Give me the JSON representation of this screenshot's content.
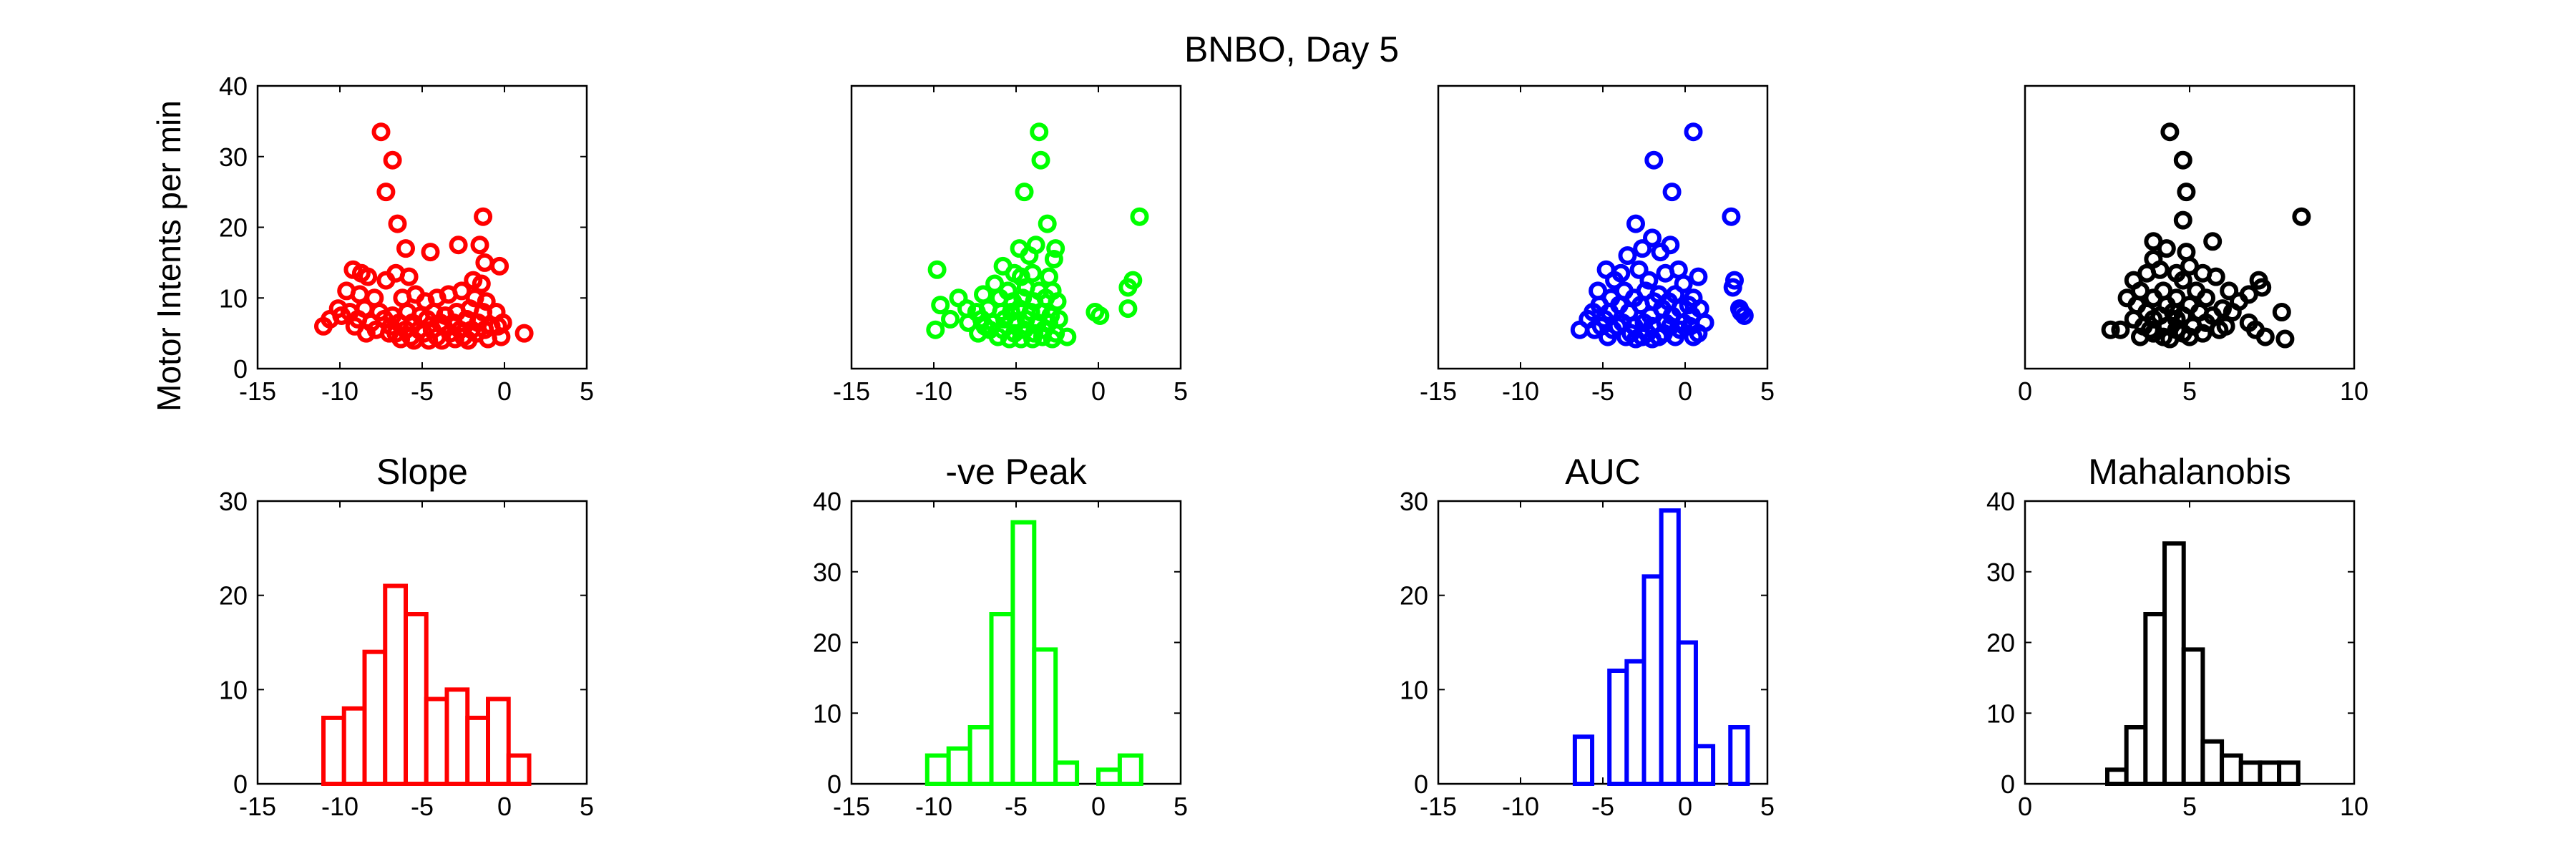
{
  "figure": {
    "suptitle": "BNBO, Day 5",
    "ylabel": "Motor Intents per min"
  },
  "colors": {
    "slope": "#ff0000",
    "peak": "#00ff00",
    "auc": "#0000ff",
    "mahal": "#000000"
  },
  "chart_data": [
    {
      "id": "slope-scatter",
      "type": "scatter",
      "row": 0,
      "col": 0,
      "color": "slope",
      "title": "",
      "ylabel": "Motor Intents per min",
      "xlim": [
        -15,
        5
      ],
      "xticks": [
        -15,
        -10,
        -5,
        0,
        5
      ],
      "ylim": [
        0,
        40
      ],
      "yticks": [
        0,
        10,
        20,
        30,
        40
      ],
      "show_yticks": true,
      "points": [
        [
          -7.5,
          33.5
        ],
        [
          -6.8,
          29.5
        ],
        [
          -7.2,
          25
        ],
        [
          -6.5,
          20.5
        ],
        [
          -1.3,
          21.5
        ],
        [
          -6,
          17
        ],
        [
          -1.5,
          17.5
        ],
        [
          -4.5,
          16.5
        ],
        [
          -2.8,
          17.5
        ],
        [
          -1.2,
          15
        ],
        [
          -0.3,
          14.5
        ],
        [
          -9.2,
          14
        ],
        [
          -8.7,
          13.5
        ],
        [
          -8.3,
          13
        ],
        [
          -7.2,
          12.5
        ],
        [
          -6.6,
          13.5
        ],
        [
          -5.8,
          13
        ],
        [
          -1.9,
          12.5
        ],
        [
          -1.4,
          12
        ],
        [
          -9.6,
          11
        ],
        [
          -8.8,
          10.5
        ],
        [
          -7.9,
          10
        ],
        [
          -6.2,
          10
        ],
        [
          -5.4,
          10.5
        ],
        [
          -4.8,
          9.5
        ],
        [
          -4.1,
          10
        ],
        [
          -3.4,
          10.5
        ],
        [
          -2.6,
          11
        ],
        [
          -1.8,
          10
        ],
        [
          -1.1,
          9.5
        ],
        [
          -10.1,
          8.5
        ],
        [
          -9.4,
          8
        ],
        [
          -8.5,
          8.5
        ],
        [
          -7.6,
          8
        ],
        [
          -6.8,
          7.5
        ],
        [
          -5.9,
          8
        ],
        [
          -5.1,
          7.5
        ],
        [
          -4.3,
          8
        ],
        [
          -3.6,
          7.5
        ],
        [
          -2.9,
          8
        ],
        [
          -2.1,
          8.5
        ],
        [
          -1.3,
          8
        ],
        [
          -0.5,
          8
        ],
        [
          -10.6,
          7
        ],
        [
          -9.9,
          7.5
        ],
        [
          -8.9,
          7
        ],
        [
          -8.1,
          6.5
        ],
        [
          -7.3,
          7
        ],
        [
          -6.4,
          6.5
        ],
        [
          -5.6,
          6.5
        ],
        [
          -4.7,
          7
        ],
        [
          -3.9,
          6.5
        ],
        [
          -3.1,
          6.5
        ],
        [
          -2.3,
          7
        ],
        [
          -1.6,
          6.5
        ],
        [
          -0.8,
          6
        ],
        [
          -0.1,
          6.5
        ],
        [
          -11,
          6
        ],
        [
          -9.1,
          6
        ],
        [
          -7.8,
          5.5
        ],
        [
          -6.9,
          6
        ],
        [
          -6,
          5.5
        ],
        [
          -5.2,
          5.5
        ],
        [
          -4.4,
          5.5
        ],
        [
          -3.7,
          6
        ],
        [
          -2.7,
          5.5
        ],
        [
          -2,
          5.5
        ],
        [
          -1.2,
          5.5
        ],
        [
          -0.4,
          6
        ],
        [
          -8.4,
          5
        ],
        [
          -6.6,
          5
        ],
        [
          -5.7,
          4.5
        ],
        [
          -4.9,
          5
        ],
        [
          -4.1,
          4.5
        ],
        [
          -3.3,
          5
        ],
        [
          -2.5,
          4.5
        ],
        [
          -1.7,
          5
        ],
        [
          -0.2,
          4.5
        ],
        [
          1.2,
          5
        ],
        [
          -5.5,
          4
        ],
        [
          -4.6,
          4
        ],
        [
          -3.8,
          4
        ],
        [
          -3,
          4.2
        ],
        [
          -2.2,
          4
        ],
        [
          -6.3,
          4.2
        ],
        [
          -7,
          5
        ],
        [
          -1,
          4.2
        ]
      ]
    },
    {
      "id": "peak-scatter",
      "type": "scatter",
      "row": 0,
      "col": 1,
      "color": "peak",
      "title": "",
      "ylabel": "",
      "xlim": [
        -15,
        5
      ],
      "xticks": [
        -15,
        -10,
        -5,
        0,
        5
      ],
      "ylim": [
        0,
        40
      ],
      "yticks": [],
      "show_yticks": false,
      "points": [
        [
          -3.6,
          33.5
        ],
        [
          -3.5,
          29.5
        ],
        [
          -4.5,
          25
        ],
        [
          -3.1,
          20.5
        ],
        [
          2.5,
          21.5
        ],
        [
          -2.6,
          17
        ],
        [
          -3.8,
          17.5
        ],
        [
          -4.8,
          17
        ],
        [
          -2.7,
          15.5
        ],
        [
          -4.2,
          16
        ],
        [
          -5.8,
          14.5
        ],
        [
          -9.8,
          14
        ],
        [
          -5.1,
          13.5
        ],
        [
          -4.7,
          13
        ],
        [
          -4,
          13.5
        ],
        [
          -3,
          13
        ],
        [
          2.1,
          12.5
        ],
        [
          1.8,
          11.5
        ],
        [
          -6.3,
          12
        ],
        [
          -5.5,
          11
        ],
        [
          -4.4,
          11.5
        ],
        [
          -3.6,
          11
        ],
        [
          -2.8,
          11
        ],
        [
          -8.5,
          10
        ],
        [
          -7,
          10.5
        ],
        [
          -6,
          10
        ],
        [
          -5.2,
          9.5
        ],
        [
          -4.6,
          10
        ],
        [
          -3.9,
          9.5
        ],
        [
          -3.2,
          10
        ],
        [
          -2.5,
          9.5
        ],
        [
          -9.6,
          9
        ],
        [
          -8,
          8.5
        ],
        [
          -7.4,
          8
        ],
        [
          -6.7,
          8.5
        ],
        [
          -5.9,
          8
        ],
        [
          -5.3,
          8
        ],
        [
          -4.8,
          8.5
        ],
        [
          -4.1,
          8
        ],
        [
          -3.5,
          8
        ],
        [
          -2.9,
          7.5
        ],
        [
          -0.2,
          8
        ],
        [
          0.1,
          7.5
        ],
        [
          1.8,
          8.5
        ],
        [
          -9,
          7
        ],
        [
          -7.9,
          6.5
        ],
        [
          -7.1,
          7
        ],
        [
          -6.4,
          6.5
        ],
        [
          -5.7,
          7
        ],
        [
          -5,
          6.5
        ],
        [
          -4.4,
          7
        ],
        [
          -3.7,
          6.5
        ],
        [
          -3,
          6.5
        ],
        [
          -2.4,
          7
        ],
        [
          -9.9,
          5.5
        ],
        [
          -6.6,
          5.5
        ],
        [
          -5.8,
          5.5
        ],
        [
          -5.1,
          5
        ],
        [
          -4.5,
          5.5
        ],
        [
          -3.9,
          5
        ],
        [
          -3.3,
          5.5
        ],
        [
          -2.6,
          5
        ],
        [
          -1.9,
          4.5
        ],
        [
          -6.1,
          4.5
        ],
        [
          -5.4,
          4.2
        ],
        [
          -4.7,
          4.2
        ],
        [
          -4,
          4.2
        ],
        [
          -3.4,
          4.5
        ],
        [
          -2.8,
          4.2
        ],
        [
          -7.3,
          5
        ],
        [
          -6.9,
          6
        ]
      ]
    },
    {
      "id": "auc-scatter",
      "type": "scatter",
      "row": 0,
      "col": 2,
      "color": "auc",
      "title": "",
      "ylabel": "",
      "xlim": [
        -15,
        5
      ],
      "xticks": [
        -15,
        -10,
        -5,
        0,
        5
      ],
      "ylim": [
        0,
        40
      ],
      "yticks": [],
      "show_yticks": false,
      "points": [
        [
          0.5,
          33.5
        ],
        [
          -1.9,
          29.5
        ],
        [
          -0.8,
          25
        ],
        [
          -3,
          20.5
        ],
        [
          2.8,
          21.5
        ],
        [
          -0.9,
          17.5
        ],
        [
          -2,
          18.5
        ],
        [
          -2.6,
          17
        ],
        [
          -3.5,
          16
        ],
        [
          -1.5,
          16.5
        ],
        [
          -4.8,
          14
        ],
        [
          -3.9,
          13.5
        ],
        [
          -2.8,
          14
        ],
        [
          -0.4,
          14
        ],
        [
          -1.2,
          13.5
        ],
        [
          0.8,
          13
        ],
        [
          -4.3,
          12.5
        ],
        [
          -2.2,
          12.5
        ],
        [
          -0.1,
          12
        ],
        [
          3,
          12.5
        ],
        [
          2.9,
          11.5
        ],
        [
          -5.3,
          11
        ],
        [
          -3.7,
          11
        ],
        [
          -2.4,
          11
        ],
        [
          -1.6,
          10.5
        ],
        [
          -0.6,
          10.5
        ],
        [
          0.5,
          10
        ],
        [
          -4.5,
          10
        ],
        [
          -3.1,
          10
        ],
        [
          -1.9,
          9.5
        ],
        [
          -1,
          9.5
        ],
        [
          0.2,
          9
        ],
        [
          -5.2,
          9
        ],
        [
          -4,
          9
        ],
        [
          -2.7,
          9
        ],
        [
          -1.4,
          8.5
        ],
        [
          -0.3,
          8.5
        ],
        [
          0.9,
          8.5
        ],
        [
          3.3,
          8.5
        ],
        [
          3.6,
          7.5
        ],
        [
          3.4,
          8
        ],
        [
          -5.6,
          8
        ],
        [
          -4.6,
          8
        ],
        [
          -3.4,
          8
        ],
        [
          -2.1,
          7.5
        ],
        [
          -0.8,
          7.5
        ],
        [
          0.4,
          7.5
        ],
        [
          -5.9,
          7
        ],
        [
          -4.9,
          7
        ],
        [
          -3.8,
          6.5
        ],
        [
          -2.5,
          6.5
        ],
        [
          -1.2,
          6.5
        ],
        [
          -0.1,
          6.5
        ],
        [
          1.2,
          6.5
        ],
        [
          -5.1,
          6
        ],
        [
          -4.1,
          6
        ],
        [
          -3.1,
          6
        ],
        [
          -2,
          6
        ],
        [
          -0.9,
          6
        ],
        [
          0.3,
          6
        ],
        [
          -6.4,
          5.5
        ],
        [
          -5.5,
          5.5
        ],
        [
          -4.4,
          5.5
        ],
        [
          -3.3,
          5
        ],
        [
          -2.3,
          5
        ],
        [
          -1.3,
          5
        ],
        [
          -0.3,
          5.5
        ],
        [
          0.8,
          5
        ],
        [
          -4.7,
          4.5
        ],
        [
          -3.6,
          4.5
        ],
        [
          -2.6,
          4.5
        ],
        [
          -1.6,
          4.5
        ],
        [
          -0.6,
          4.5
        ],
        [
          0.5,
          4.5
        ],
        [
          -3,
          4.2
        ],
        [
          -2,
          4.2
        ]
      ]
    },
    {
      "id": "mahal-scatter",
      "type": "scatter",
      "row": 0,
      "col": 3,
      "color": "mahal",
      "title": "",
      "ylabel": "",
      "xlim": [
        0,
        10
      ],
      "xticks": [
        0,
        5,
        10
      ],
      "ylim": [
        0,
        40
      ],
      "yticks": [],
      "show_yticks": false,
      "points": [
        [
          4.4,
          33.5
        ],
        [
          4.8,
          29.5
        ],
        [
          4.9,
          25
        ],
        [
          4.8,
          21
        ],
        [
          8.4,
          21.5
        ],
        [
          3.9,
          18
        ],
        [
          5.7,
          18
        ],
        [
          4.3,
          17
        ],
        [
          4.9,
          16.5
        ],
        [
          3.9,
          15.5
        ],
        [
          5,
          14.5
        ],
        [
          4.1,
          14
        ],
        [
          3.7,
          13.5
        ],
        [
          4.6,
          13.5
        ],
        [
          5.4,
          13.5
        ],
        [
          5.8,
          13
        ],
        [
          3.3,
          12.5
        ],
        [
          4.8,
          12.5
        ],
        [
          7.1,
          12.5
        ],
        [
          7.2,
          11.5
        ],
        [
          3.5,
          11
        ],
        [
          4.2,
          11
        ],
        [
          5.2,
          11
        ],
        [
          6.2,
          11
        ],
        [
          6.8,
          10.5
        ],
        [
          3.1,
          10
        ],
        [
          3.9,
          10
        ],
        [
          4.6,
          10
        ],
        [
          5.5,
          10
        ],
        [
          6.5,
          9.5
        ],
        [
          3.4,
          9
        ],
        [
          4.3,
          9
        ],
        [
          5,
          9
        ],
        [
          6,
          8.5
        ],
        [
          7.8,
          8
        ],
        [
          3.7,
          8
        ],
        [
          4.5,
          8
        ],
        [
          5.3,
          8
        ],
        [
          6.3,
          8
        ],
        [
          4.1,
          7.5
        ],
        [
          4.8,
          7.5
        ],
        [
          5.7,
          7.5
        ],
        [
          3.3,
          7
        ],
        [
          3.9,
          7
        ],
        [
          4.6,
          7
        ],
        [
          5.5,
          6.5
        ],
        [
          6.8,
          6.5
        ],
        [
          3.6,
          6
        ],
        [
          4.3,
          6
        ],
        [
          5.1,
          6
        ],
        [
          6.1,
          6
        ],
        [
          2.6,
          5.5
        ],
        [
          2.9,
          5.5
        ],
        [
          3.8,
          5.5
        ],
        [
          4.6,
          5.5
        ],
        [
          5.4,
          5
        ],
        [
          7,
          5.5
        ],
        [
          3.9,
          5
        ],
        [
          4.8,
          5
        ],
        [
          7.3,
          4.5
        ],
        [
          7.9,
          4.2
        ],
        [
          4.2,
          4.5
        ],
        [
          5,
          4.5
        ],
        [
          4.4,
          4.2
        ],
        [
          3.5,
          4.5
        ],
        [
          5.9,
          5.5
        ]
      ]
    },
    {
      "id": "slope-hist",
      "type": "bar",
      "row": 1,
      "col": 0,
      "color": "slope",
      "title": "Slope",
      "ylabel": "",
      "xlim": [
        -15,
        5
      ],
      "xticks": [
        -15,
        -10,
        -5,
        0,
        5
      ],
      "ylim": [
        0,
        30
      ],
      "yticks": [
        0,
        10,
        20,
        30
      ],
      "show_yticks": true,
      "bin_start": -11,
      "bin_width": 1.25,
      "values": [
        7,
        8,
        14,
        21,
        18,
        9,
        10,
        7,
        9,
        3
      ]
    },
    {
      "id": "peak-hist",
      "type": "bar",
      "row": 1,
      "col": 1,
      "color": "peak",
      "title": "-ve Peak",
      "ylabel": "",
      "xlim": [
        -15,
        5
      ],
      "xticks": [
        -15,
        -10,
        -5,
        0,
        5
      ],
      "ylim": [
        0,
        40
      ],
      "yticks": [
        0,
        10,
        20,
        30,
        40
      ],
      "show_yticks": true,
      "bin_start": -10.4,
      "bin_width": 1.3,
      "values": [
        4,
        5,
        8,
        24,
        37,
        19,
        3,
        0,
        2,
        4
      ]
    },
    {
      "id": "auc-hist",
      "type": "bar",
      "row": 1,
      "col": 2,
      "color": "auc",
      "title": "AUC",
      "ylabel": "",
      "xlim": [
        -15,
        5
      ],
      "xticks": [
        -15,
        -10,
        -5,
        0,
        5
      ],
      "ylim": [
        0,
        30
      ],
      "yticks": [
        0,
        10,
        20,
        30
      ],
      "show_yticks": true,
      "bin_start": -6.7,
      "bin_width": 1.05,
      "values": [
        5,
        0,
        12,
        13,
        22,
        29,
        15,
        4,
        0,
        6
      ]
    },
    {
      "id": "mahal-hist",
      "type": "bar",
      "row": 1,
      "col": 3,
      "color": "mahal",
      "title": "Mahalanobis",
      "ylabel": "",
      "xlim": [
        0,
        10
      ],
      "xticks": [
        0,
        5,
        10
      ],
      "ylim": [
        0,
        40
      ],
      "yticks": [
        0,
        10,
        20,
        30,
        40
      ],
      "show_yticks": true,
      "bin_start": 2.5,
      "bin_width": 0.58,
      "values": [
        2,
        8,
        24,
        34,
        19,
        6,
        4,
        3,
        3,
        3
      ]
    }
  ]
}
